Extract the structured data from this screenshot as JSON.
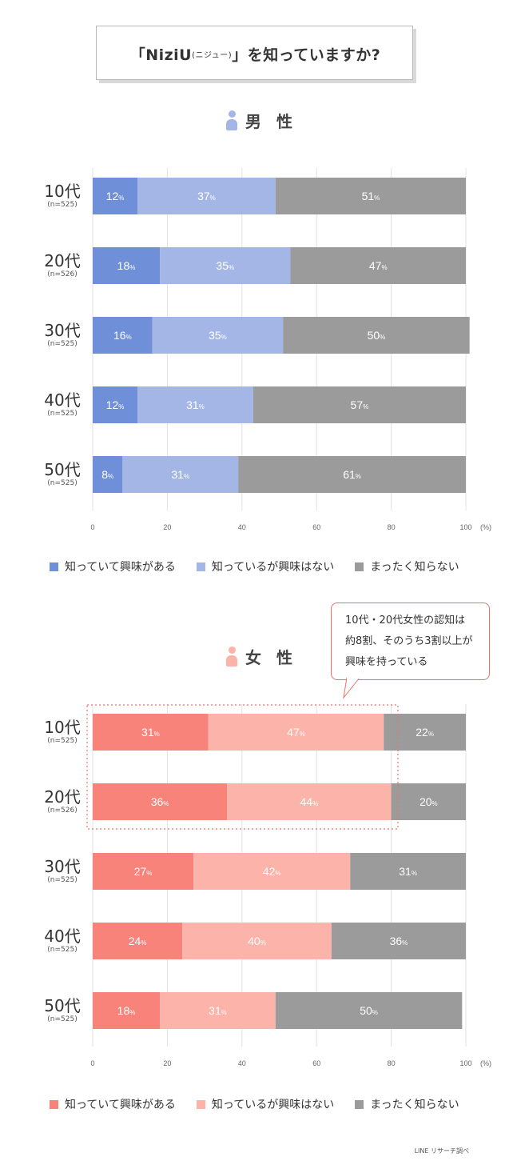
{
  "title": {
    "prefix": "「NiziU",
    "reading": "(ニジュー)",
    "suffix": "」を知っていますか?"
  },
  "male": {
    "heading": "男 性",
    "colors": {
      "know_interested": "#6f8fd8",
      "know_not_interested": "#a3b6e6",
      "dont_know": "#9b9b9b"
    }
  },
  "female": {
    "heading": "女 性",
    "colors": {
      "know_interested": "#f8837a",
      "know_not_interested": "#fbb3aa",
      "dont_know": "#9b9b9b"
    }
  },
  "legend": [
    "知っていて興味がある",
    "知っているが興味はない",
    "まったく知らない"
  ],
  "callout": {
    "line1": "10代・20代女性の認知は",
    "line2": "約8割、そのうち3割以上が",
    "line3": "興味を持っている"
  },
  "source": "LINE リサーチ調べ",
  "chart_data": [
    {
      "type": "bar",
      "stacked": true,
      "orientation": "horizontal",
      "title": "男 性",
      "categories": [
        "10代",
        "20代",
        "30代",
        "40代",
        "50代"
      ],
      "sample_sizes": [
        "(n=525)",
        "(n=526)",
        "(n=525)",
        "(n=525)",
        "(n=525)"
      ],
      "series": [
        {
          "name": "知っていて興味がある",
          "values": [
            12,
            18,
            16,
            12,
            8
          ]
        },
        {
          "name": "知っているが興味はない",
          "values": [
            37,
            35,
            35,
            31,
            31
          ]
        },
        {
          "name": "まったく知らない",
          "values": [
            51,
            47,
            50,
            57,
            61
          ]
        }
      ],
      "xlim": [
        0,
        100
      ],
      "xticks": [
        "0",
        "20",
        "40",
        "60",
        "80",
        "100"
      ],
      "unit": "(%)",
      "value_suffix": "%",
      "grid": true,
      "legend_position": "bottom"
    },
    {
      "type": "bar",
      "stacked": true,
      "orientation": "horizontal",
      "title": "女 性",
      "categories": [
        "10代",
        "20代",
        "30代",
        "40代",
        "50代"
      ],
      "sample_sizes": [
        "(n=525)",
        "(n=526)",
        "(n=525)",
        "(n=525)",
        "(n=525)"
      ],
      "series": [
        {
          "name": "知っていて興味がある",
          "values": [
            31,
            36,
            27,
            24,
            18
          ]
        },
        {
          "name": "知っているが興味はない",
          "values": [
            47,
            44,
            42,
            40,
            31
          ]
        },
        {
          "name": "まったく知らない",
          "values": [
            22,
            20,
            31,
            36,
            50
          ]
        }
      ],
      "xlim": [
        0,
        100
      ],
      "xticks": [
        "0",
        "20",
        "40",
        "60",
        "80",
        "100"
      ],
      "unit": "(%)",
      "value_suffix": "%",
      "grid": true,
      "legend_position": "bottom"
    }
  ]
}
